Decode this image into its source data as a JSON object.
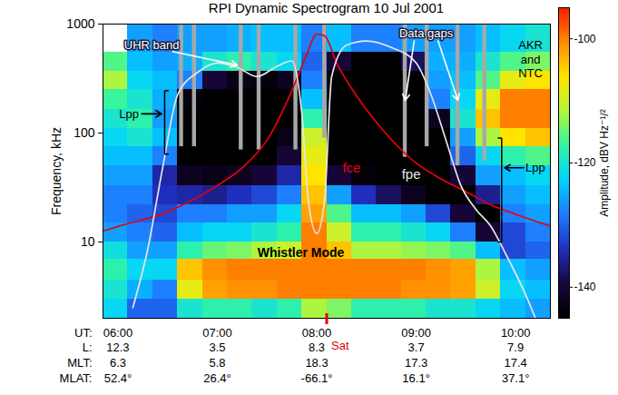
{
  "chart_data": {
    "type": "spectrogram",
    "title": "RPI Dynamic Spectrogram 10 Jul 2001",
    "y_label": "Frequency, kHz",
    "log": "y",
    "xlim": [
      5.85,
      10.35
    ],
    "xticks": [
      {
        "value": 6,
        "label": "06:00"
      },
      {
        "value": 7,
        "label": "07:00"
      },
      {
        "value": 8,
        "label": "08:00"
      },
      {
        "value": 9,
        "label": "09:00"
      },
      {
        "value": 10,
        "label": "10:00"
      }
    ],
    "ylim": [
      2,
      1000
    ],
    "yticks": [
      10,
      100,
      1000
    ],
    "x_rows": {
      "labels": [
        "UT:",
        "L:",
        "MLT:",
        "MLAT:"
      ],
      "values": [
        [
          12.3,
          3.5,
          8.3,
          3.7,
          7.9
        ],
        [
          6.3,
          5.8,
          18.3,
          17.3,
          17.4
        ],
        [
          {
            "value": 52.4,
            "label": "52.4°"
          },
          {
            "value": 26.4,
            "label": "26.4°"
          },
          {
            "value": -66.1,
            "label": "-66.1°"
          },
          {
            "value": 16.1,
            "label": "16.1°"
          },
          {
            "value": 37.1,
            "label": "37.1°"
          }
        ]
      ]
    },
    "time_edges": [
      5.85,
      6.1,
      6.35,
      6.6,
      6.85,
      7.1,
      7.35,
      7.6,
      7.85,
      8.1,
      8.35,
      8.6,
      8.85,
      9.1,
      9.35,
      9.6,
      9.85,
      10.1,
      10.35
    ],
    "freq_edges": [
      2,
      3,
      4.5,
      7,
      10,
      15,
      22,
      33,
      50,
      75,
      110,
      165,
      250,
      370,
      550,
      1000
    ],
    "amplitude": [
      [
        -122,
        -120,
        -118,
        -121,
        -126,
        -128,
        -128,
        -126,
        -124,
        -122,
        -120,
        -117,
        -112,
        -116,
        null
      ],
      [
        -130,
        -125,
        -122,
        -126,
        -128,
        -130,
        -128,
        -126,
        -124,
        -120,
        -118,
        -120,
        -122,
        -124,
        -126
      ],
      [
        -130,
        -128,
        -122,
        -126,
        -130,
        -132,
        -134,
        -135,
        -128,
        -124,
        -126,
        -125,
        -124,
        -126,
        -128
      ],
      [
        -120,
        -108,
        -104,
        -118,
        -124,
        -128,
        -135,
        -142,
        -145,
        -145,
        -145,
        -144,
        -128,
        -125,
        -126
      ],
      [
        -118,
        -102,
        -101,
        -115,
        -122,
        -128,
        -136,
        -143,
        -145,
        -145,
        -145,
        -145,
        -140,
        -120,
        -126
      ],
      [
        -118,
        -101,
        -100,
        -114,
        -122,
        -126,
        -134,
        -142,
        -145,
        -145,
        -145,
        -145,
        -143,
        -118,
        -125
      ],
      [
        -120,
        -101,
        -100,
        -112,
        -120,
        -126,
        -132,
        -140,
        -145,
        -145,
        -145,
        -145,
        -144,
        -120,
        -124
      ],
      [
        -118,
        -100,
        -100,
        -110,
        -118,
        -122,
        -128,
        -135,
        -140,
        -143,
        -145,
        -145,
        -142,
        -122,
        -124
      ],
      [
        -112,
        -100,
        -100,
        -100,
        -100,
        -102,
        -104,
        -106,
        -108,
        -110,
        -118,
        -124,
        -128,
        -130,
        -128
      ],
      [
        -114,
        -100,
        -100,
        -104,
        -110,
        -116,
        -126,
        -140,
        -145,
        -145,
        -145,
        -145,
        -145,
        -140,
        -124
      ],
      [
        -118,
        -100,
        -100,
        -112,
        -118,
        -124,
        -134,
        -144,
        -145,
        -145,
        -145,
        -145,
        -145,
        -145,
        -128
      ],
      [
        -118,
        -100,
        -100,
        -112,
        -118,
        -124,
        -138,
        -145,
        -145,
        -145,
        -145,
        -145,
        -145,
        -145,
        -128
      ],
      [
        -118,
        -101,
        -100,
        -113,
        -120,
        -126,
        -142,
        -145,
        -145,
        -145,
        -145,
        -145,
        -145,
        -138,
        -126
      ],
      [
        -120,
        -101,
        -101,
        -114,
        -122,
        -132,
        -145,
        -145,
        -145,
        -145,
        -142,
        -128,
        -126,
        -125,
        -126
      ],
      [
        -120,
        -102,
        -102,
        -116,
        -128,
        -140,
        -145,
        -140,
        -130,
        -126,
        -120,
        -122,
        -124,
        -125,
        -126
      ],
      [
        -122,
        -110,
        -112,
        -124,
        -140,
        -145,
        -136,
        -126,
        -122,
        -112,
        -104,
        -108,
        -116,
        -120,
        -124
      ],
      [
        -124,
        -122,
        -124,
        -132,
        -132,
        -128,
        -126,
        -124,
        -118,
        -106,
        -100,
        -100,
        -108,
        -116,
        -122
      ],
      [
        -126,
        -124,
        -126,
        -130,
        -128,
        -126,
        -124,
        -122,
        -116,
        -104,
        -100,
        -100,
        -106,
        -114,
        -120
      ]
    ],
    "colorbar": {
      "label": "Amplitude, dBV Hz⁻¹/²",
      "range": [
        -145,
        -95
      ],
      "ticks": [
        -100,
        -120,
        -140
      ]
    },
    "series": [
      {
        "name": "fce",
        "color": "#e8000b",
        "type": "line",
        "x": [
          5.85,
          6.0,
          6.5,
          7.0,
          7.25,
          7.5,
          7.75,
          7.9,
          8.0,
          8.08,
          8.2,
          8.4,
          8.6,
          8.8,
          9.0,
          9.25,
          9.5,
          9.75,
          10.0,
          10.35
        ],
        "values": [
          12.6,
          13.9,
          19,
          33,
          48,
          86,
          245,
          530,
          810,
          780,
          440,
          220,
          126,
          78,
          53,
          38,
          29,
          22,
          18,
          14
        ]
      },
      {
        "name": "fpe",
        "color": "#e6e6e6",
        "type": "line",
        "x": [
          6.15,
          6.3,
          6.45,
          6.6,
          6.8,
          7.0,
          7.2,
          7.4,
          7.6,
          7.75,
          7.85,
          7.92,
          8.0,
          8.08,
          8.15,
          8.3,
          8.5,
          8.75,
          9.0,
          9.15,
          9.3,
          9.45,
          9.6,
          9.75,
          9.9,
          10.1,
          10.2
        ],
        "values": [
          2.5,
          8.6,
          48,
          224,
          360,
          440,
          400,
          330,
          410,
          460,
          150,
          22,
          12,
          25,
          330,
          640,
          700,
          610,
          440,
          224,
          86,
          33,
          20,
          14,
          7.8,
          3.3,
          2
        ]
      }
    ],
    "data_gaps": {
      "label": "Data gaps",
      "start": [
        6.62,
        6.75,
        7.22,
        7.4,
        7.77,
        8.06,
        8.87,
        9.09,
        9.4,
        9.67
      ],
      "end": [
        6.66,
        6.79,
        7.26,
        7.44,
        7.81,
        8.1,
        8.91,
        9.13,
        9.44,
        9.71
      ],
      "low": [
        75,
        75,
        70,
        70,
        70,
        90,
        60,
        75,
        50,
        55
      ]
    },
    "annotations": [
      "UHR band",
      "AKR and NTC",
      "Lpp",
      "Lpp",
      "Whistler Mode"
    ],
    "satellite": {
      "label": "Sat",
      "x": 8.1
    }
  }
}
